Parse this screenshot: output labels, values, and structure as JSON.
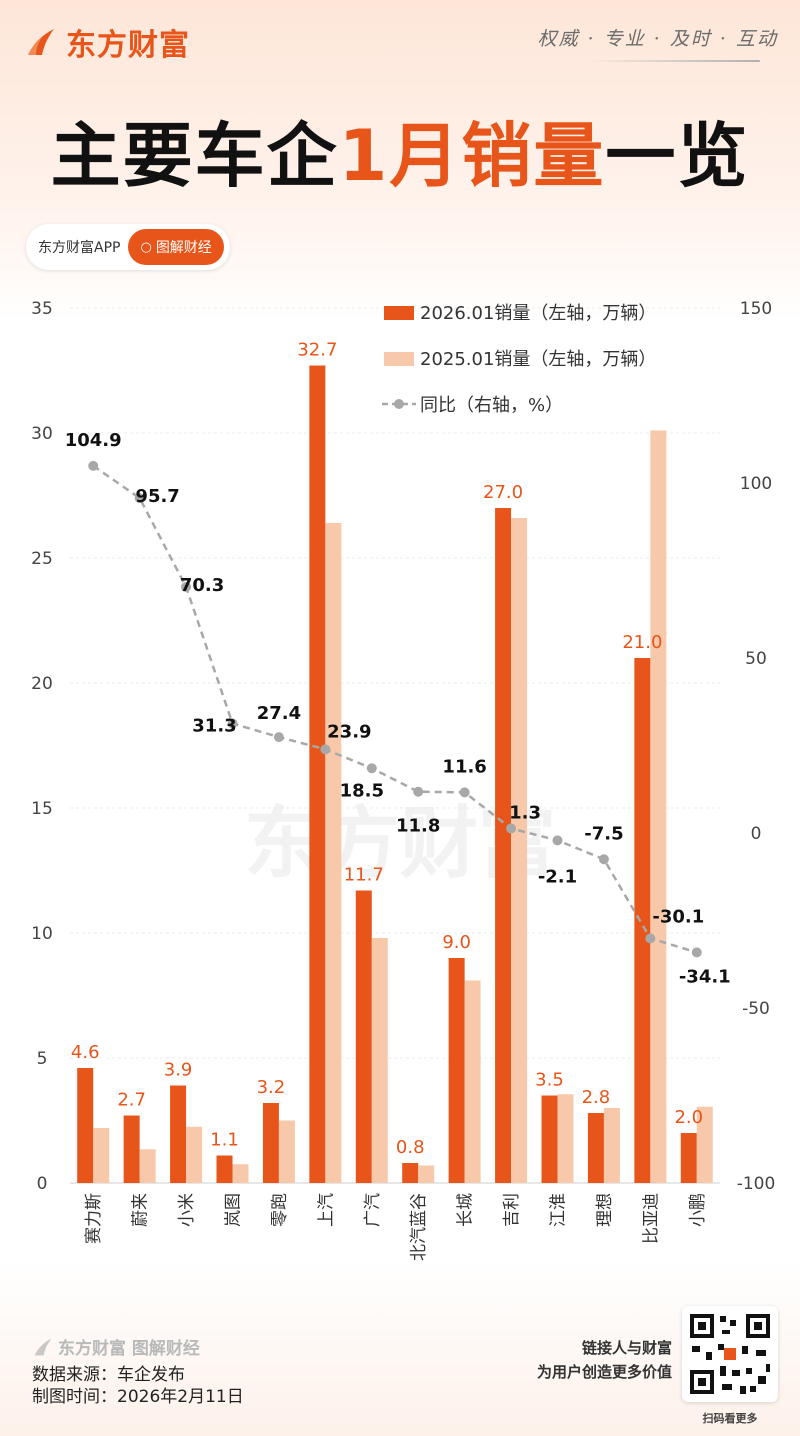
{
  "header": {
    "brand": "东方财富",
    "slogan": "权威 · 专业 · 及时 · 互动",
    "title_pre": "主要车企",
    "title_hl": "1月销量",
    "title_post": "一览",
    "badge_app": "东方财富APP",
    "badge_btn": "图解财经"
  },
  "colors": {
    "accent": "#e8551a",
    "bar2026": "#e8551a",
    "bar2025": "#f8c8aa",
    "yoy_line": "#a8a8a8"
  },
  "chart_data": {
    "type": "bar",
    "categories": [
      "赛力斯",
      "蔚来",
      "小米",
      "岚图",
      "零跑",
      "上汽",
      "广汽",
      "北汽蓝谷",
      "长城",
      "吉利",
      "江淮",
      "理想",
      "比亚迪",
      "小鹏"
    ],
    "series": [
      {
        "name": "2026.01销量（左轴，万辆）",
        "kind": "bar",
        "axis": "left",
        "values": [
          4.6,
          2.7,
          3.9,
          1.1,
          3.2,
          32.7,
          11.7,
          0.8,
          9.0,
          27.0,
          3.5,
          2.8,
          21.0,
          2.0
        ],
        "labels": [
          "4.6",
          "2.7",
          "3.9",
          "1.1",
          "3.2",
          "32.7",
          "11.7",
          "0.8",
          "9.0",
          "27.0",
          "3.5",
          "2.8",
          "21.0",
          "2.0"
        ]
      },
      {
        "name": "2025.01销量（左轴，万辆）",
        "kind": "bar",
        "axis": "left",
        "values": [
          2.2,
          1.35,
          2.25,
          0.75,
          2.5,
          26.4,
          9.8,
          0.7,
          8.1,
          26.6,
          3.55,
          3.0,
          30.1,
          3.05
        ]
      },
      {
        "name": "同比（右轴，%）",
        "kind": "line",
        "axis": "right",
        "values": [
          104.9,
          95.7,
          70.3,
          31.3,
          27.4,
          23.9,
          18.5,
          11.8,
          11.6,
          1.3,
          -2.1,
          -7.5,
          -30.1,
          -34.1
        ],
        "labels": [
          "104.9",
          "95.7",
          "70.3",
          "31.3",
          "27.4",
          "23.9",
          "18.5",
          "11.8",
          "11.6",
          "1.3",
          "-2.1",
          "-7.5",
          "-30.1",
          "-34.1"
        ]
      }
    ],
    "y_left": {
      "range": [
        0,
        35
      ],
      "ticks": [
        "0",
        "5",
        "10",
        "15",
        "20",
        "25",
        "30",
        "35"
      ]
    },
    "y_right": {
      "range": [
        -100,
        150
      ],
      "ticks": [
        "-100",
        "-50",
        "0",
        "50",
        "100",
        "150"
      ]
    },
    "legend_position": "top-right",
    "grid": true
  },
  "footer": {
    "logo": "东方财富 图解财经",
    "source": "数据来源：车企发布",
    "date": "制图时间：2026年2月11日",
    "tagline1": "链接人与财富",
    "tagline2": "为用户创造更多价值",
    "qr_caption": "扫码看更多"
  }
}
